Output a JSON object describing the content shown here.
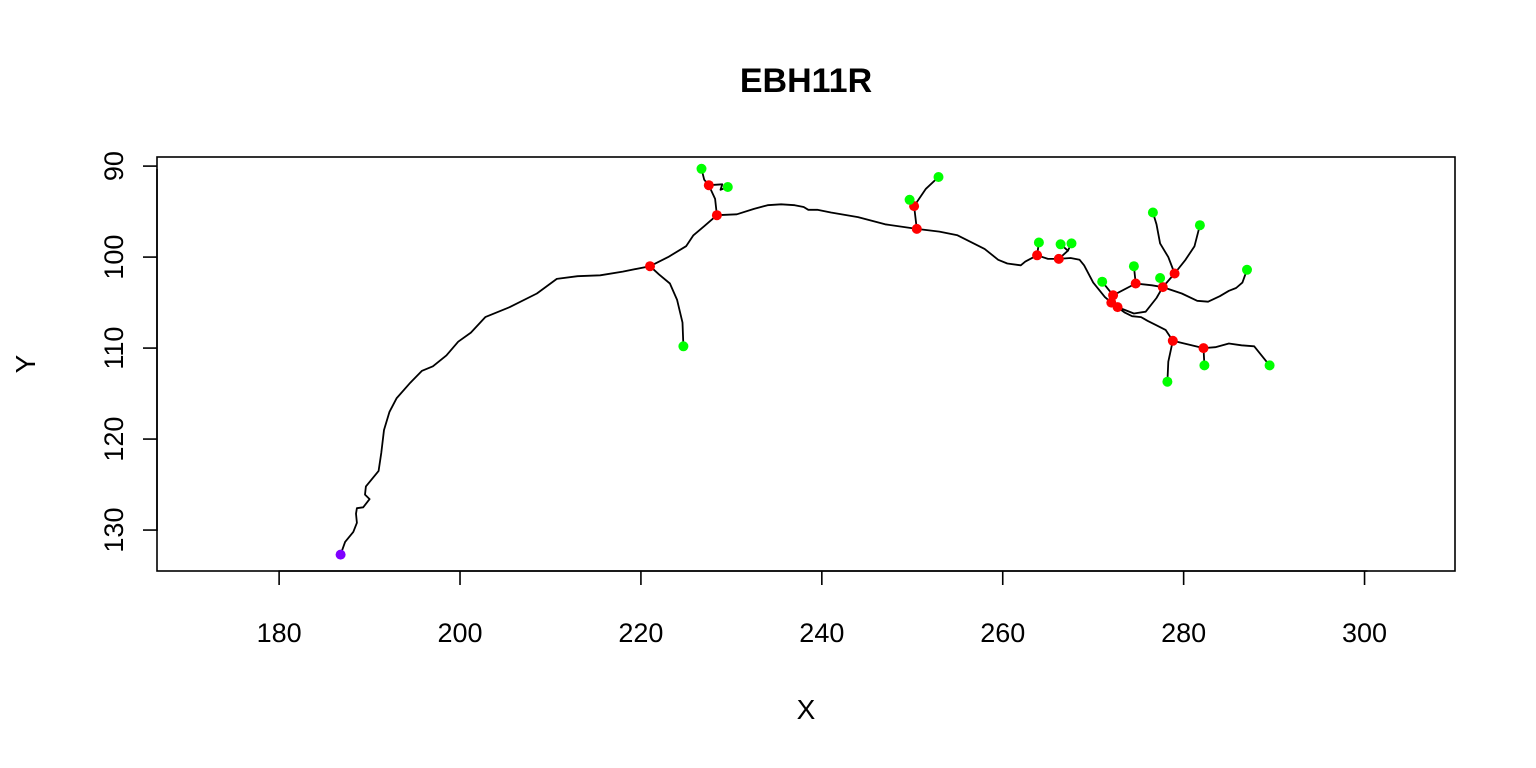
{
  "chart_data": {
    "type": "scatter",
    "title": "EBH11R",
    "xlabel": "X",
    "ylabel": "Y",
    "xlim": [
      166.5,
      310
    ],
    "ylim": [
      89,
      134.5
    ],
    "y_reversed": true,
    "grid": false,
    "legend": "none",
    "x_ticks": [
      180,
      200,
      220,
      240,
      260,
      280,
      300
    ],
    "y_ticks": [
      90,
      100,
      110,
      120,
      130
    ],
    "colors": {
      "line": "#000000",
      "root": "#7f00ff",
      "branch": "#ff0000",
      "tip": "#00ff00"
    },
    "lines": [
      [
        [
          186.8,
          132.7
        ],
        [
          187.3,
          131.3
        ],
        [
          188.2,
          130.2
        ],
        [
          188.6,
          129.2
        ],
        [
          188.5,
          128.2
        ],
        [
          188.6,
          127.6
        ],
        [
          189.3,
          127.5
        ],
        [
          190.0,
          126.6
        ],
        [
          189.5,
          126.1
        ],
        [
          189.6,
          125.2
        ],
        [
          190.5,
          124.1
        ],
        [
          191.0,
          123.5
        ],
        [
          191.3,
          121.5
        ],
        [
          191.6,
          119.0
        ],
        [
          192.2,
          117.0
        ],
        [
          193.0,
          115.5
        ],
        [
          194.5,
          113.8
        ],
        [
          195.8,
          112.5
        ],
        [
          197.0,
          112.0
        ],
        [
          198.5,
          110.8
        ],
        [
          199.8,
          109.3
        ],
        [
          201.2,
          108.3
        ],
        [
          202.8,
          106.6
        ],
        [
          205.5,
          105.5
        ],
        [
          208.5,
          104.0
        ],
        [
          210.7,
          102.4
        ],
        [
          213.0,
          102.1
        ],
        [
          215.5,
          102.0
        ],
        [
          218.0,
          101.6
        ],
        [
          221.0,
          101.0
        ],
        [
          223.0,
          100.0
        ],
        [
          225.0,
          98.8
        ],
        [
          225.8,
          97.6
        ],
        [
          227.0,
          96.6
        ],
        [
          228.4,
          95.4
        ],
        [
          230.6,
          95.3
        ],
        [
          232.5,
          94.7
        ],
        [
          234.0,
          94.3
        ],
        [
          235.5,
          94.2
        ],
        [
          237.0,
          94.3
        ],
        [
          238.0,
          94.5
        ],
        [
          238.5,
          94.8
        ],
        [
          239.5,
          94.8
        ],
        [
          241.0,
          95.1
        ],
        [
          244.0,
          95.6
        ],
        [
          247.0,
          96.4
        ],
        [
          250.5,
          96.9
        ],
        [
          253.0,
          97.2
        ],
        [
          255.0,
          97.6
        ],
        [
          258.0,
          99.1
        ],
        [
          259.5,
          100.3
        ],
        [
          260.5,
          100.7
        ],
        [
          262.0,
          100.9
        ],
        [
          262.5,
          100.5
        ],
        [
          263.8,
          99.8
        ],
        [
          265.0,
          100.2
        ],
        [
          266.2,
          100.2
        ],
        [
          267.5,
          100.1
        ],
        [
          268.5,
          100.3
        ],
        [
          269.0,
          100.9
        ],
        [
          270.0,
          102.8
        ],
        [
          271.3,
          104.4
        ],
        [
          272.0,
          105.0
        ],
        [
          273.5,
          106.1
        ],
        [
          274.3,
          106.5
        ],
        [
          275.3,
          106.6
        ],
        [
          276.0,
          107.0
        ],
        [
          277.0,
          107.5
        ],
        [
          278.0,
          108.0
        ],
        [
          278.8,
          109.2
        ],
        [
          282.2,
          110.0
        ],
        [
          283.5,
          109.9
        ],
        [
          285.0,
          109.5
        ],
        [
          286.4,
          109.7
        ],
        [
          287.8,
          109.8
        ],
        [
          289.5,
          111.9
        ]
      ],
      [
        [
          221.0,
          101.0
        ],
        [
          222.0,
          101.9
        ],
        [
          223.2,
          102.9
        ],
        [
          224.0,
          104.7
        ],
        [
          224.6,
          107.2
        ],
        [
          224.7,
          109.8
        ]
      ],
      [
        [
          228.4,
          95.4
        ],
        [
          228.2,
          93.6
        ],
        [
          227.5,
          92.1
        ],
        [
          227.0,
          91.5
        ],
        [
          226.7,
          90.3
        ]
      ],
      [
        [
          227.5,
          92.1
        ],
        [
          229.0,
          92.0
        ],
        [
          228.8,
          92.6
        ],
        [
          229.6,
          92.3
        ]
      ],
      [
        [
          250.5,
          96.9
        ],
        [
          250.2,
          94.4
        ],
        [
          249.7,
          93.7
        ]
      ],
      [
        [
          250.2,
          94.4
        ],
        [
          251.5,
          92.5
        ],
        [
          252.9,
          91.2
        ]
      ],
      [
        [
          263.8,
          99.8
        ],
        [
          264.0,
          98.4
        ]
      ],
      [
        [
          266.2,
          100.2
        ],
        [
          267.2,
          99.3
        ],
        [
          266.4,
          98.6
        ]
      ],
      [
        [
          267.2,
          99.3
        ],
        [
          267.6,
          98.5
        ]
      ],
      [
        [
          271.0,
          102.7
        ],
        [
          272.2,
          104.2
        ],
        [
          272.1,
          105.0
        ],
        [
          272.5,
          105.3
        ],
        [
          272.7,
          105.5
        ]
      ],
      [
        [
          272.2,
          104.2
        ],
        [
          274.7,
          102.9
        ],
        [
          274.5,
          101.0
        ]
      ],
      [
        [
          274.7,
          102.9
        ],
        [
          276.5,
          103.1
        ],
        [
          277.7,
          103.3
        ]
      ],
      [
        [
          272.7,
          105.5
        ],
        [
          274.5,
          106.2
        ],
        [
          275.8,
          106.0
        ],
        [
          277.0,
          104.5
        ],
        [
          277.7,
          103.3
        ],
        [
          279.0,
          101.8
        ],
        [
          278.3,
          100.0
        ],
        [
          277.4,
          98.5
        ],
        [
          277.0,
          96.4
        ],
        [
          276.6,
          95.1
        ]
      ],
      [
        [
          277.7,
          103.3
        ],
        [
          277.4,
          102.3
        ]
      ],
      [
        [
          279.0,
          101.8
        ],
        [
          280.2,
          100.3
        ],
        [
          281.2,
          98.8
        ],
        [
          281.8,
          96.5
        ]
      ],
      [
        [
          277.7,
          103.3
        ],
        [
          279.8,
          104.0
        ],
        [
          281.5,
          104.8
        ],
        [
          282.7,
          104.9
        ],
        [
          284.0,
          104.3
        ],
        [
          285.0,
          103.7
        ],
        [
          285.8,
          103.4
        ],
        [
          286.5,
          102.8
        ],
        [
          287.0,
          101.4
        ]
      ],
      [
        [
          278.8,
          109.2
        ],
        [
          278.3,
          111.5
        ],
        [
          278.2,
          113.7
        ]
      ],
      [
        [
          282.2,
          110.0
        ],
        [
          282.3,
          111.9
        ]
      ]
    ],
    "root_points": [
      [
        186.8,
        132.7
      ]
    ],
    "branch_points": [
      [
        221.0,
        101.0
      ],
      [
        227.5,
        92.1
      ],
      [
        228.4,
        95.4
      ],
      [
        250.2,
        94.4
      ],
      [
        250.5,
        96.9
      ],
      [
        263.8,
        99.8
      ],
      [
        266.2,
        100.2
      ],
      [
        272.2,
        104.2
      ],
      [
        272.0,
        105.0
      ],
      [
        272.7,
        105.5
      ],
      [
        274.7,
        102.9
      ],
      [
        277.7,
        103.3
      ],
      [
        279.0,
        101.8
      ],
      [
        278.8,
        109.2
      ],
      [
        282.2,
        110.0
      ]
    ],
    "tip_points": [
      [
        224.7,
        109.8
      ],
      [
        226.7,
        90.3
      ],
      [
        229.6,
        92.3
      ],
      [
        249.7,
        93.7
      ],
      [
        252.9,
        91.2
      ],
      [
        264.0,
        98.4
      ],
      [
        266.4,
        98.6
      ],
      [
        267.6,
        98.5
      ],
      [
        271.0,
        102.7
      ],
      [
        274.5,
        101.0
      ],
      [
        277.4,
        102.3
      ],
      [
        276.6,
        95.1
      ],
      [
        281.8,
        96.5
      ],
      [
        287.0,
        101.4
      ],
      [
        289.5,
        111.9
      ],
      [
        278.2,
        113.7
      ],
      [
        282.3,
        111.9
      ]
    ]
  }
}
